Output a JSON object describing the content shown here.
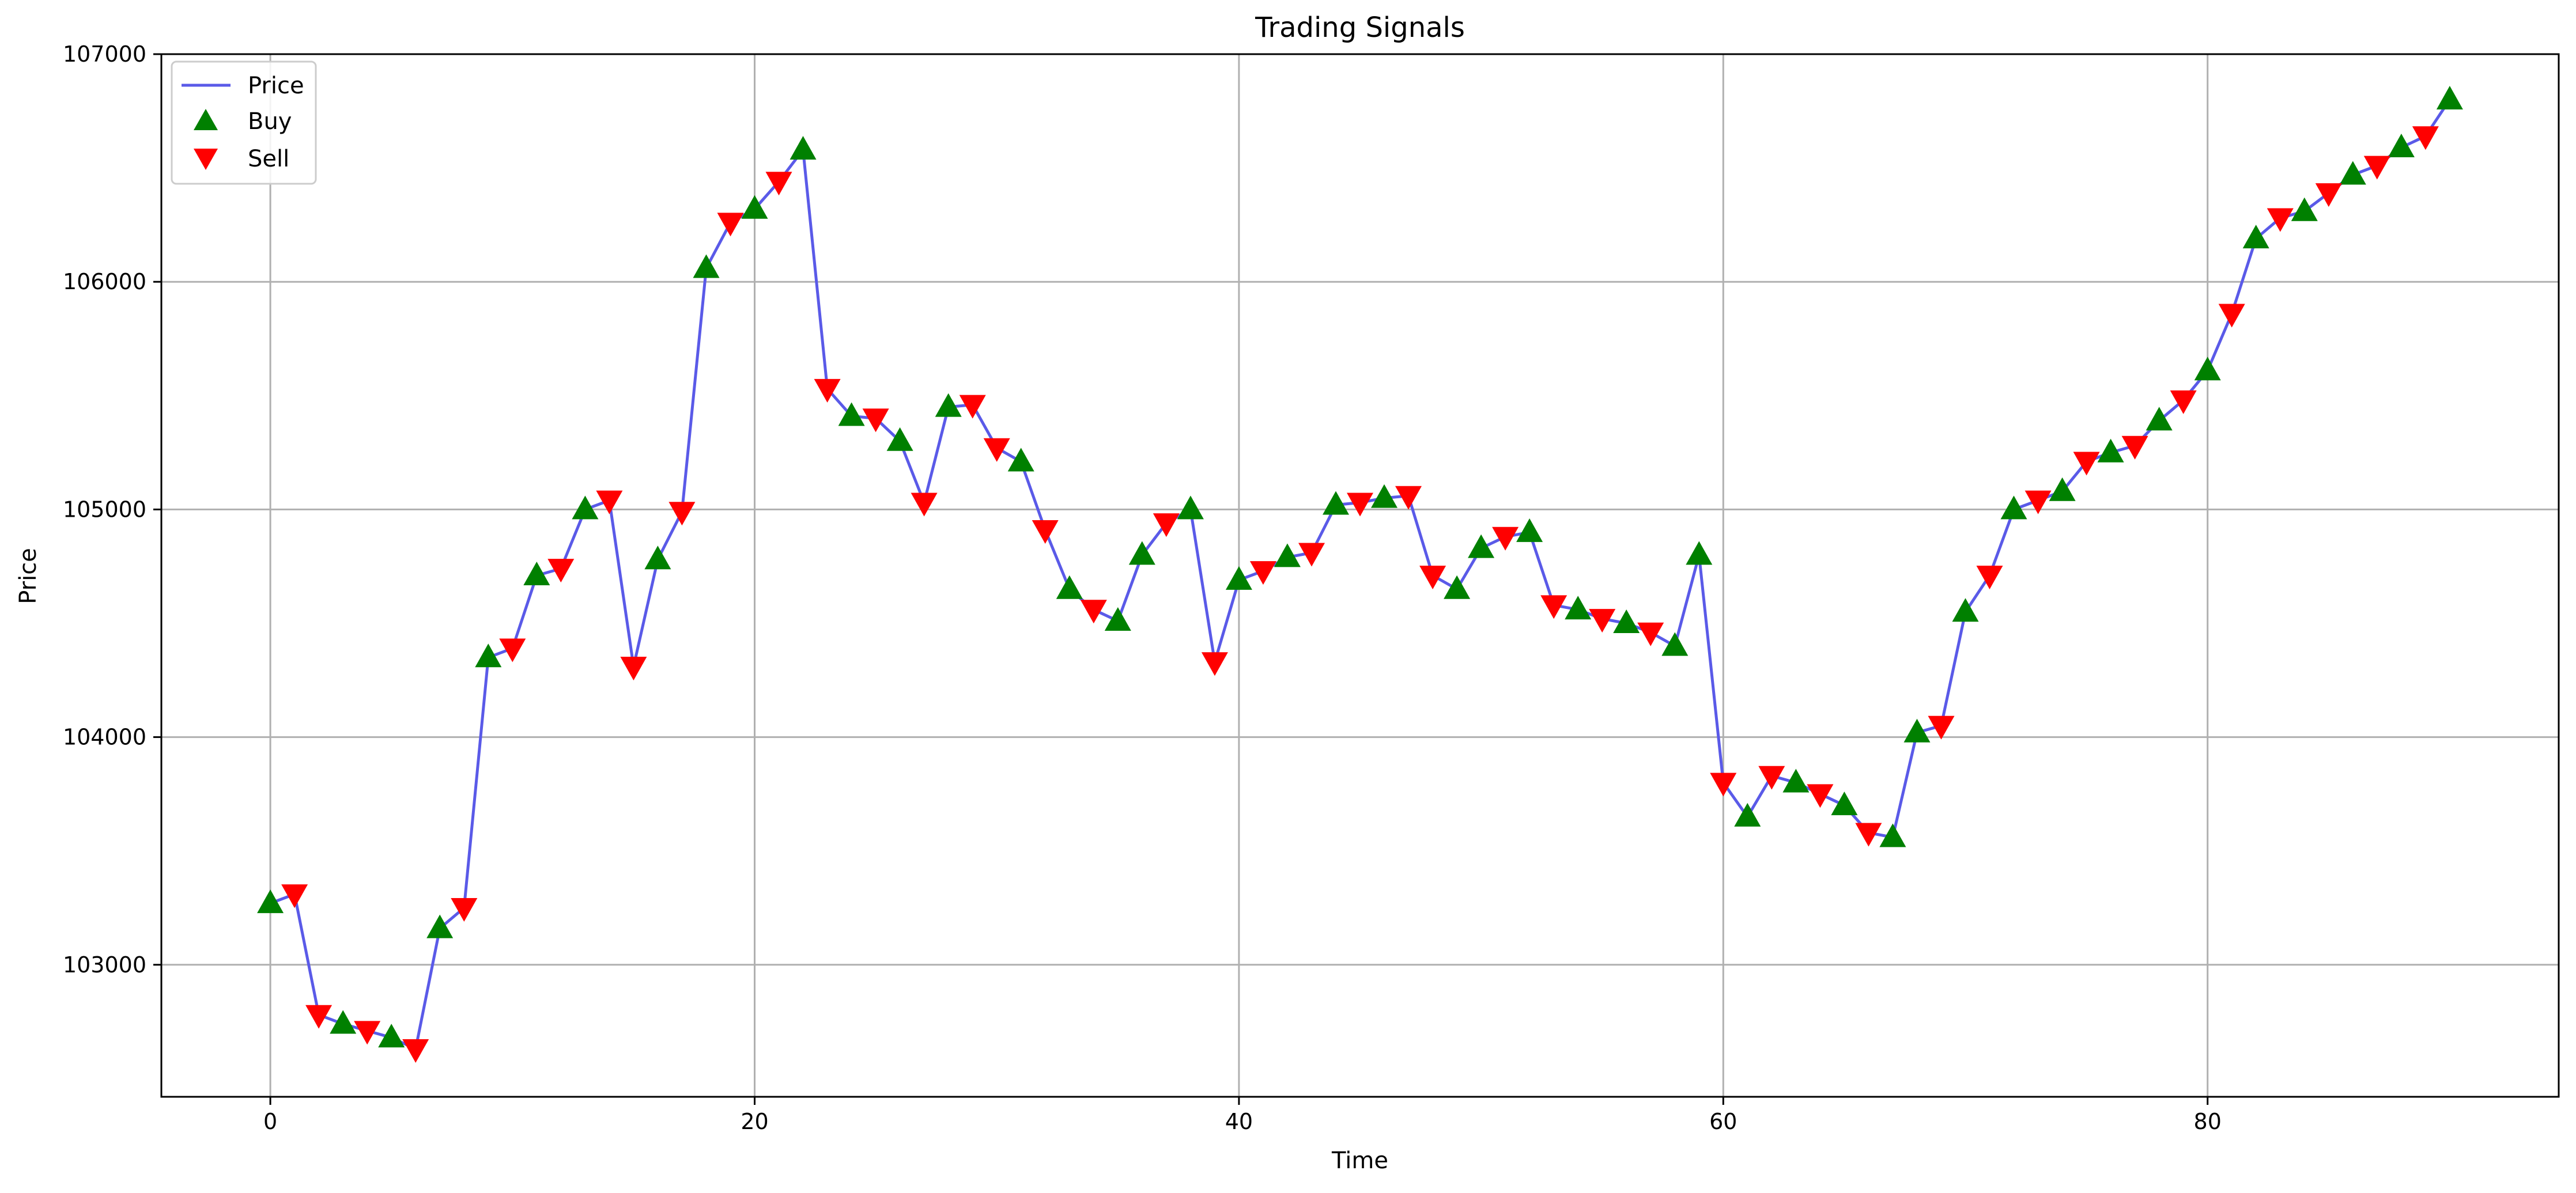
{
  "chart_data": {
    "type": "line",
    "title": "Trading Signals",
    "xlabel": "Time",
    "ylabel": "Price",
    "xlim": [
      -4.5,
      94.5
    ],
    "ylim": [
      102420,
      107000
    ],
    "x_ticks": [
      0,
      20,
      40,
      60,
      80
    ],
    "y_ticks": [
      103000,
      104000,
      105000,
      106000,
      107000
    ],
    "grid": true,
    "legend_position": "upper left",
    "legend": [
      "Price",
      "Buy",
      "Sell"
    ],
    "colors": {
      "price": "#5a5ae8",
      "buy": "#008000",
      "sell": "#ff0000"
    },
    "series": [
      {
        "name": "Price",
        "kind": "line",
        "x": [
          0,
          1,
          2,
          3,
          4,
          5,
          6,
          7,
          8,
          9,
          10,
          11,
          12,
          13,
          14,
          15,
          16,
          17,
          18,
          19,
          20,
          21,
          22,
          23,
          24,
          25,
          26,
          27,
          28,
          29,
          30,
          31,
          32,
          33,
          34,
          35,
          36,
          37,
          38,
          39,
          40,
          41,
          42,
          43,
          44,
          45,
          46,
          47,
          48,
          49,
          50,
          51,
          52,
          53,
          54,
          55,
          56,
          57,
          58,
          59,
          60,
          61,
          62,
          63,
          64,
          65,
          66,
          67,
          68,
          69,
          70,
          71,
          72,
          73,
          74,
          75,
          76,
          77,
          78,
          79,
          80,
          81,
          82,
          83,
          84,
          85,
          86,
          87,
          88,
          89,
          90
        ],
        "y": [
          103270,
          103310,
          102780,
          102740,
          102710,
          102680,
          102630,
          103160,
          103250,
          104350,
          104390,
          104710,
          104740,
          105000,
          105040,
          104310,
          104780,
          104990,
          106060,
          106260,
          106320,
          106440,
          106580,
          105530,
          105410,
          105400,
          105300,
          105030,
          105450,
          105460,
          105270,
          105210,
          104910,
          104650,
          104560,
          104510,
          104800,
          104940,
          105000,
          104330,
          104690,
          104730,
          104790,
          104810,
          105020,
          105030,
          105050,
          105060,
          104710,
          104650,
          104830,
          104880,
          104900,
          104580,
          104560,
          104520,
          104500,
          104460,
          104400,
          104800,
          103800,
          103650,
          103830,
          103800,
          103750,
          103700,
          103580,
          103560,
          104020,
          104050,
          104550,
          104710,
          105000,
          105040,
          105080,
          105210,
          105250,
          105280,
          105390,
          105480,
          105610,
          105860,
          106190,
          106280,
          106310,
          106390,
          106470,
          106510,
          106590,
          106640,
          106800
        ]
      },
      {
        "name": "Buy",
        "kind": "marker",
        "marker": "triangle-up",
        "x": [
          0,
          3,
          5,
          7,
          9,
          11,
          13,
          16,
          18,
          20,
          22,
          24,
          26,
          28,
          31,
          33,
          35,
          36,
          38,
          40,
          42,
          44,
          46,
          49,
          50,
          52,
          54,
          56,
          58,
          59,
          61,
          63,
          65,
          67,
          68,
          70,
          72,
          74,
          76,
          78,
          80,
          82,
          84,
          86,
          88,
          90
        ],
        "y": [
          103270,
          102740,
          102680,
          103160,
          104350,
          104710,
          105000,
          104780,
          106060,
          106320,
          106580,
          105410,
          105300,
          105450,
          105210,
          104650,
          104510,
          104800,
          105000,
          104690,
          104790,
          105020,
          105050,
          104650,
          104830,
          104900,
          104560,
          104500,
          104400,
          104800,
          103650,
          103800,
          103700,
          103560,
          104020,
          104550,
          105000,
          105080,
          105250,
          105390,
          105610,
          106190,
          106310,
          106470,
          106590,
          106800
        ]
      },
      {
        "name": "Sell",
        "kind": "marker",
        "marker": "triangle-down",
        "x": [
          1,
          2,
          4,
          6,
          8,
          10,
          12,
          14,
          15,
          17,
          19,
          21,
          23,
          25,
          27,
          29,
          30,
          32,
          34,
          37,
          39,
          41,
          43,
          45,
          47,
          48,
          51,
          53,
          55,
          57,
          60,
          62,
          64,
          66,
          69,
          71,
          73,
          75,
          77,
          79,
          81,
          83,
          85,
          87,
          89
        ],
        "y": [
          103310,
          102780,
          102710,
          102630,
          103250,
          104390,
          104740,
          105040,
          104310,
          104990,
          106260,
          106440,
          105530,
          105400,
          105030,
          105460,
          105270,
          104910,
          104560,
          104940,
          104330,
          104730,
          104810,
          105030,
          105060,
          104710,
          104880,
          104580,
          104520,
          104460,
          103800,
          103830,
          103750,
          103580,
          104050,
          104710,
          105040,
          105210,
          105280,
          105480,
          105860,
          106280,
          106390,
          106510,
          106640
        ]
      }
    ]
  }
}
